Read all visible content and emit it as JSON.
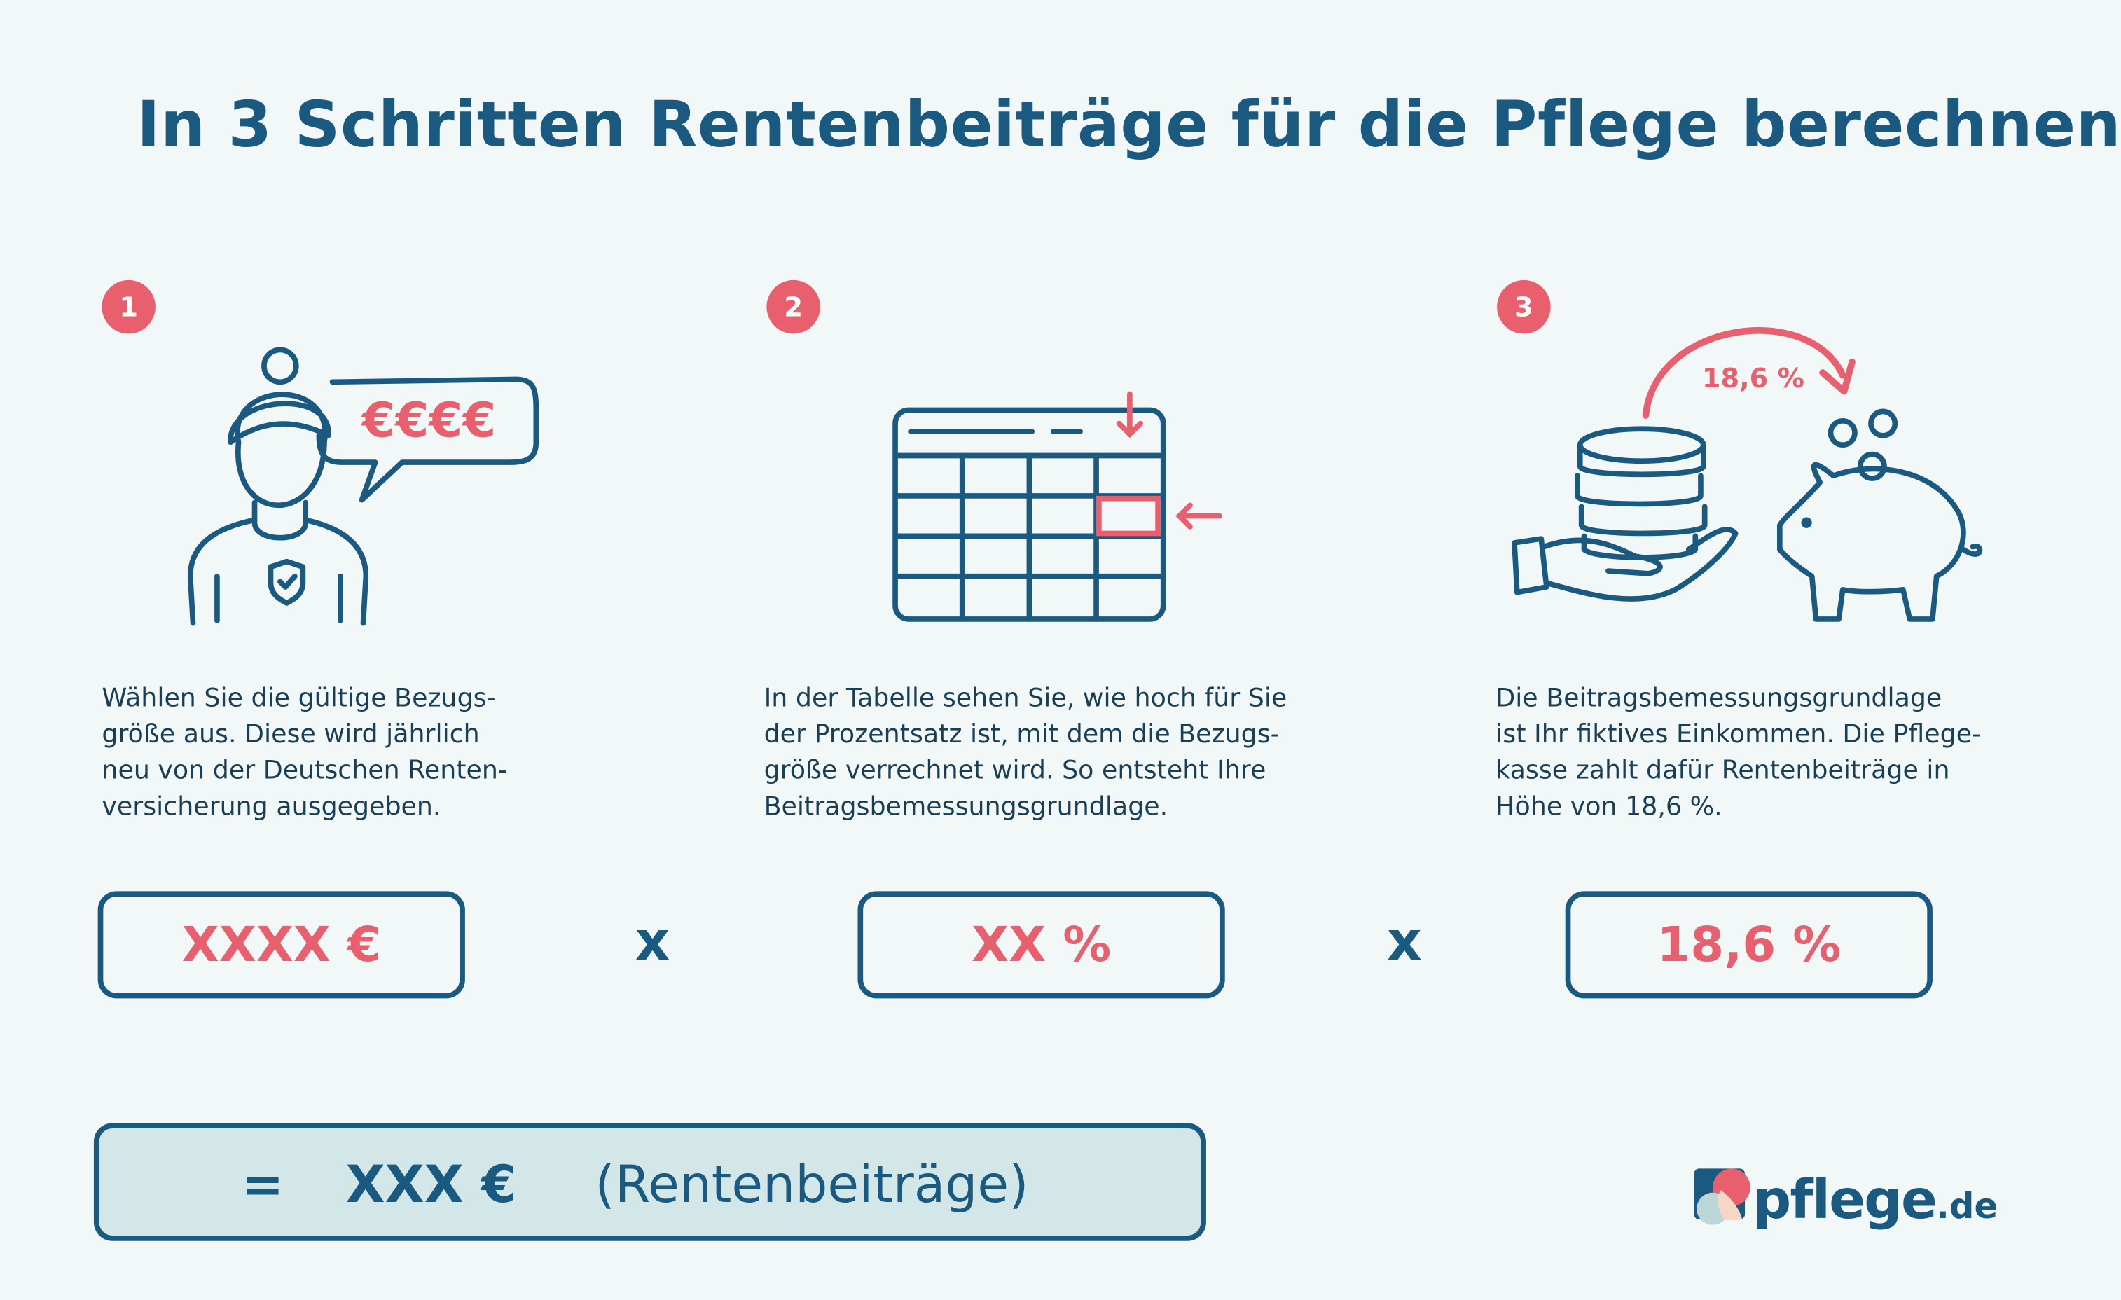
{
  "title": "In 3 Schritten Rentenbeiträge für die Pflege berechnen",
  "colors": {
    "primary": "#1b5a80",
    "accent": "#e8606e",
    "background": "#f2f7f8",
    "result_fill": "#d3e7e8"
  },
  "steps": [
    {
      "number": "1",
      "icon": "person-speech-bubble-icon",
      "bubble_text": "€€€€",
      "description": "Wählen Sie die gültige Bezugs-\ngröße aus. Diese wird jährlich\nneu von der Deutschen Renten-\nversicherung ausgegeben.",
      "value": "XXXX €"
    },
    {
      "number": "2",
      "icon": "table-lookup-icon",
      "description": "In der Tabelle sehen Sie, wie hoch für Sie\nder Prozentsatz ist, mit dem die Bezugs-\ngröße verrechnet wird. So entsteht Ihre\nBeitragsbemessungsgrundlage.",
      "value": "XX %"
    },
    {
      "number": "3",
      "icon": "coins-to-piggy-bank-icon",
      "arrow_label": "18,6 %",
      "description": "Die Beitragsbemessungsgrundlage\nist Ihr fiktives Einkommen. Die Pflege-\nkasse zahlt dafür Rentenbeiträge in\nHöhe von 18,6 %.",
      "value": "18,6 %"
    }
  ],
  "operators": [
    "x",
    "x"
  ],
  "result": {
    "equals": "=",
    "value": "XXX €",
    "label": "(Rentenbeiträge)"
  },
  "logo": {
    "name": "pflege",
    "suffix": ".de"
  }
}
